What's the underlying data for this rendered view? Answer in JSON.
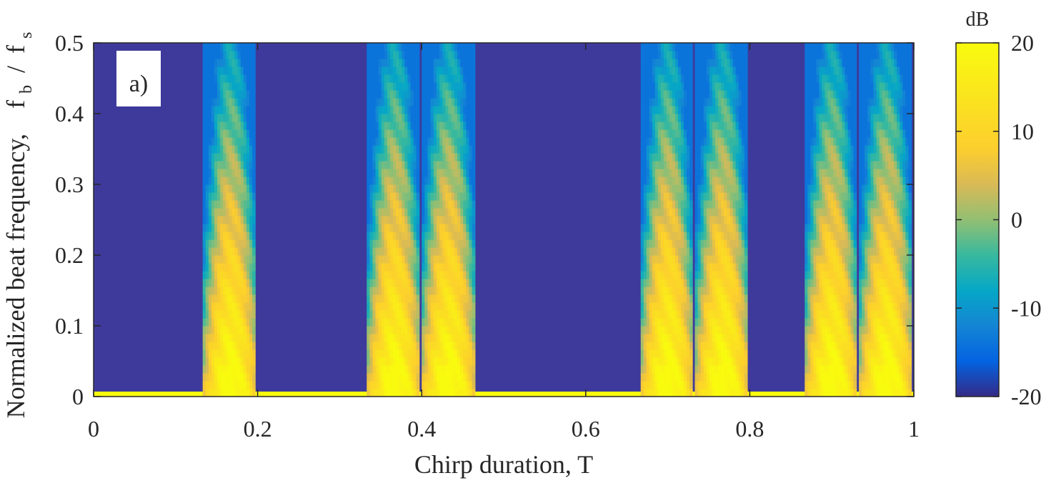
{
  "chart_data": {
    "type": "heatmap",
    "panel_label": "a)",
    "xlabel": "Chirp duration,   T",
    "ylabel_main": "Normalized beat frequency,",
    "ylabel_fb": "f",
    "ylabel_fb_sub": "b",
    "ylabel_sep": "/",
    "ylabel_fs": "f",
    "ylabel_fs_sub": "s",
    "xlim": [
      0,
      1
    ],
    "ylim": [
      0,
      0.5
    ],
    "x_ticks": [
      0,
      0.2,
      0.4,
      0.6,
      0.8,
      1
    ],
    "x_tick_labels": [
      "0",
      "0.2",
      "0.4",
      "0.6",
      "0.8",
      "1"
    ],
    "y_ticks": [
      0,
      0.1,
      0.2,
      0.3,
      0.4,
      0.5
    ],
    "y_tick_labels": [
      "0",
      "0.1",
      "0.2",
      "0.3",
      "0.4",
      "0.5"
    ],
    "colorbar": {
      "label": "dB",
      "range": [
        -20,
        20
      ],
      "ticks": [
        -20,
        -10,
        0,
        10,
        20
      ],
      "tick_labels": [
        "-20",
        "-10",
        "0",
        "10",
        "20"
      ],
      "colormap": "parula"
    },
    "background_db": -20,
    "baseline_band": {
      "y_max": 0.007,
      "db": 20
    },
    "bands": [
      {
        "x_start": 0.133,
        "x_end": 0.197,
        "center": 0.167
      },
      {
        "x_start": 0.333,
        "x_end": 0.397,
        "center": 0.367
      },
      {
        "x_start": 0.4,
        "x_end": 0.465,
        "center": 0.433
      },
      {
        "x_start": 0.667,
        "x_end": 0.73,
        "center": 0.7
      },
      {
        "x_start": 0.733,
        "x_end": 0.797,
        "center": 0.767
      },
      {
        "x_start": 0.867,
        "x_end": 0.93,
        "center": 0.9
      },
      {
        "x_start": 0.933,
        "x_end": 0.997,
        "center": 0.967
      }
    ],
    "grid": false
  }
}
